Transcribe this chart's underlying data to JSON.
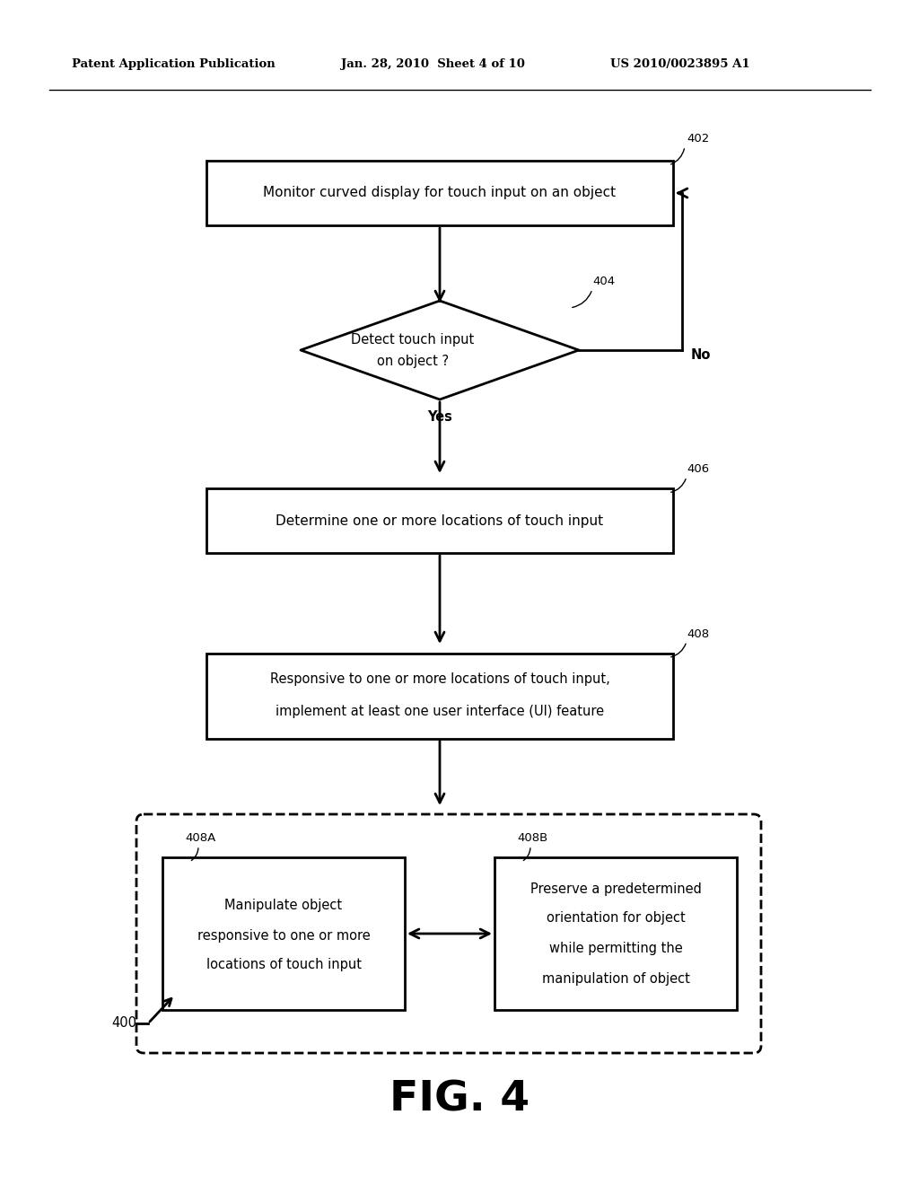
{
  "bg_color": "#ffffff",
  "header_left": "Patent Application Publication",
  "header_mid": "Jan. 28, 2010  Sheet 4 of 10",
  "header_right": "US 2010/0023895 A1",
  "fig_label": "FIG. 4",
  "fig_number": "400",
  "box402_text": "Monitor curved display for touch input on an object",
  "box402_label": "402",
  "diamond404_line1": "Detect touch input",
  "diamond404_line2": "on object ?",
  "diamond404_label": "404",
  "yes_label": "Yes",
  "no_label": "No",
  "box406_text": "Determine one or more locations of touch input",
  "box406_label": "406",
  "box408_line1": "Responsive to one or more locations of touch input,",
  "box408_line2": "implement at least one user interface (UI) feature",
  "box408_label": "408",
  "box408A_line1": "Manipulate object",
  "box408A_line2": "responsive to one or more",
  "box408A_line3": "locations of touch input",
  "box408A_label": "408A",
  "box408B_line1": "Preserve a predetermined",
  "box408B_line2": "orientation for object",
  "box408B_line3": "while permitting the",
  "box408B_line4": "manipulation of object",
  "box408B_label": "408B",
  "line_color": "#000000",
  "text_color": "#000000",
  "lw_main": 2.0,
  "lw_header": 1.0,
  "lw_leader": 1.0
}
